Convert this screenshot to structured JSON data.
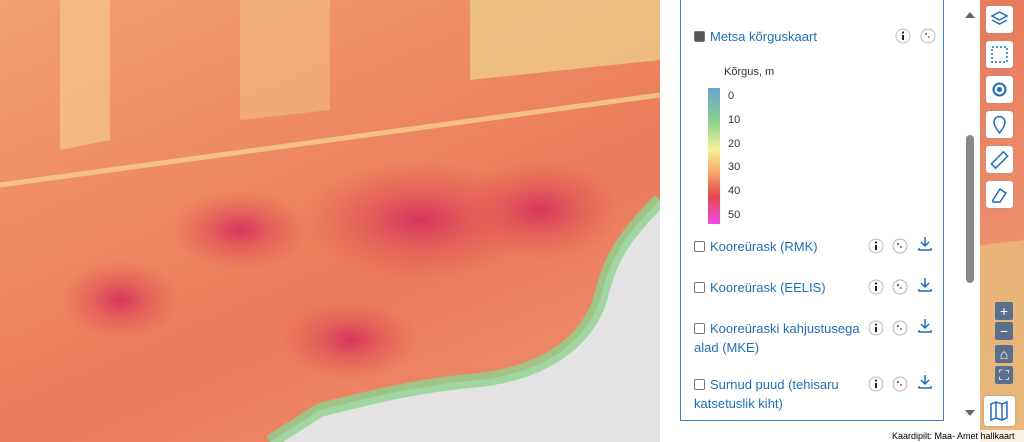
{
  "legend": {
    "title": "Kõrgus, m",
    "ticks": [
      0,
      10,
      20,
      30,
      40,
      50
    ]
  },
  "layers": [
    {
      "name": "Metsa kõrguskaart",
      "checked": true
    },
    {
      "name": "Kooreürask (RMK)",
      "checked": false
    },
    {
      "name": "Kooreürask (EELIS)",
      "checked": false
    },
    {
      "name": "Kooreüraski kahjustusega alad (MKE)",
      "checked": false
    },
    {
      "name": "Surnud puud (tehisaru katsetuslik kiht)",
      "checked": false
    }
  ],
  "attribution": "Kaardipilt: Maa- Amet hallkaart"
}
